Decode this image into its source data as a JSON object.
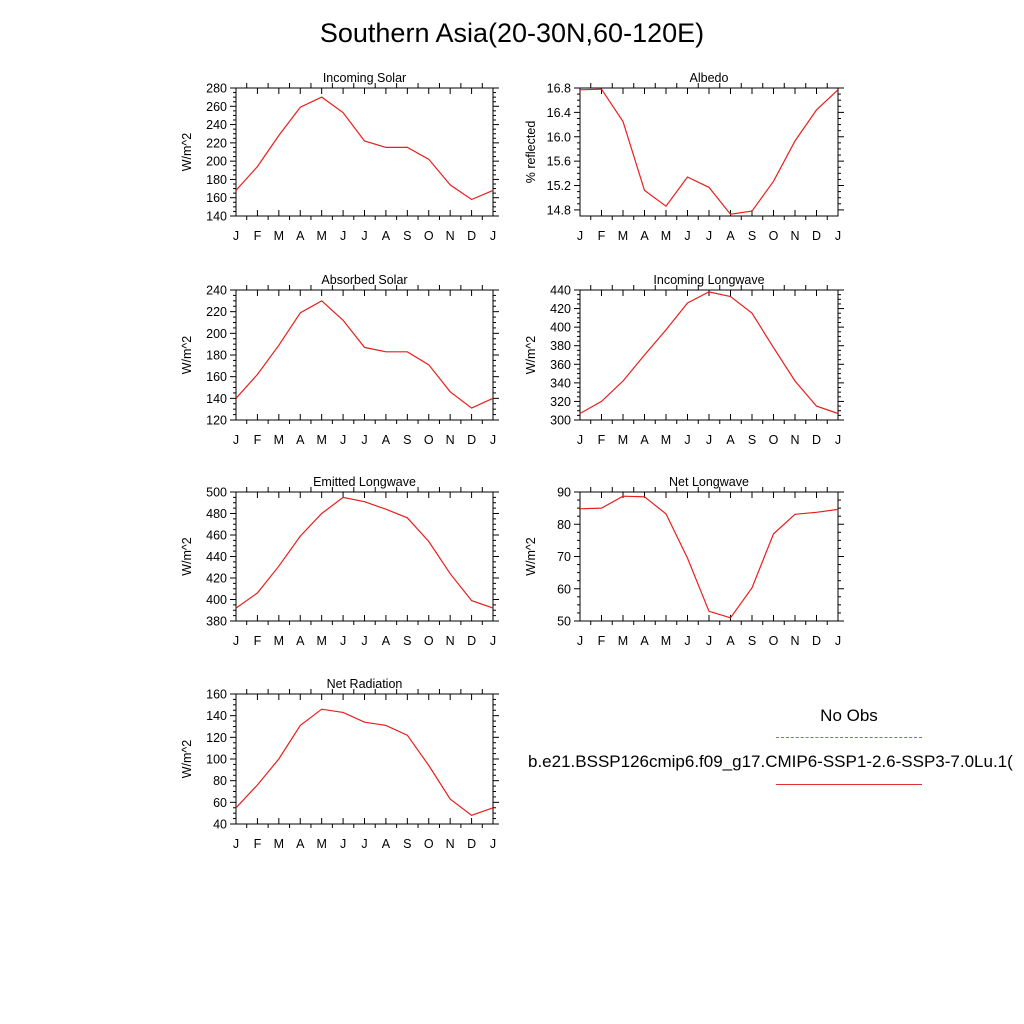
{
  "title": "Southern Asia(20-30N,60-120E)",
  "colors": {
    "model_line": "#e81e1e",
    "obs_line": "#6f6fd6",
    "axis": "#000000"
  },
  "legend": {
    "obs_label": "No Obs",
    "model_label": "b.e21.BSSP126cmip6.f09_g17.CMIP6-SSP1-2.6-SSP3-7.0Lu.1("
  },
  "chart_data": [
    {
      "type": "line",
      "title": "Incoming Solar",
      "ylabel": "W/m^2",
      "categories": [
        "J",
        "F",
        "M",
        "A",
        "M",
        "J",
        "J",
        "A",
        "S",
        "O",
        "N",
        "D",
        "J"
      ],
      "ylim": [
        140,
        280
      ],
      "yticks": [
        140,
        160,
        180,
        200,
        220,
        240,
        260,
        280
      ],
      "ytick_labels": [
        "140",
        "160",
        "180",
        "200",
        "220",
        "240",
        "260",
        "280"
      ],
      "values": [
        168,
        194,
        228,
        259,
        270,
        253,
        222,
        215,
        215,
        202,
        174,
        158,
        168
      ]
    },
    {
      "type": "line",
      "title": "Albedo",
      "ylabel": "% reflected",
      "categories": [
        "J",
        "F",
        "M",
        "A",
        "M",
        "J",
        "J",
        "A",
        "S",
        "O",
        "N",
        "D",
        "J"
      ],
      "ylim": [
        14.7,
        16.8
      ],
      "yticks": [
        14.8,
        15.2,
        15.6,
        16.0,
        16.4,
        16.8
      ],
      "ytick_labels": [
        "14.8",
        "15.2",
        "15.6",
        "16.0",
        "16.4",
        "16.8"
      ],
      "values": [
        16.77,
        16.78,
        16.25,
        15.12,
        14.86,
        15.34,
        15.17,
        14.73,
        14.78,
        15.27,
        15.93,
        16.44,
        16.77
      ]
    },
    {
      "type": "line",
      "title": "Absorbed Solar",
      "ylabel": "W/m^2",
      "categories": [
        "J",
        "F",
        "M",
        "A",
        "M",
        "J",
        "J",
        "A",
        "S",
        "O",
        "N",
        "D",
        "J"
      ],
      "ylim": [
        120,
        240
      ],
      "yticks": [
        120,
        140,
        160,
        180,
        200,
        220,
        240
      ],
      "ytick_labels": [
        "120",
        "140",
        "160",
        "180",
        "200",
        "220",
        "240"
      ],
      "values": [
        140,
        162,
        189,
        219,
        230,
        212,
        187,
        183,
        183,
        171,
        146,
        131,
        140
      ]
    },
    {
      "type": "line",
      "title": "Incoming Longwave",
      "ylabel": "W/m^2",
      "categories": [
        "J",
        "F",
        "M",
        "A",
        "M",
        "J",
        "J",
        "A",
        "S",
        "O",
        "N",
        "D",
        "J"
      ],
      "ylim": [
        300,
        440
      ],
      "yticks": [
        300,
        320,
        340,
        360,
        380,
        400,
        420,
        440
      ],
      "ytick_labels": [
        "300",
        "320",
        "340",
        "360",
        "380",
        "400",
        "420",
        "440"
      ],
      "values": [
        307,
        320,
        342,
        370,
        397,
        426,
        438,
        433,
        415,
        378,
        342,
        315,
        307
      ]
    },
    {
      "type": "line",
      "title": "Emitted Longwave",
      "ylabel": "W/m^2",
      "categories": [
        "J",
        "F",
        "M",
        "A",
        "M",
        "J",
        "J",
        "A",
        "S",
        "O",
        "N",
        "D",
        "J"
      ],
      "ylim": [
        380,
        500
      ],
      "yticks": [
        380,
        400,
        420,
        440,
        460,
        480,
        500
      ],
      "ytick_labels": [
        "380",
        "400",
        "420",
        "440",
        "460",
        "480",
        "500"
      ],
      "values": [
        392,
        406,
        431,
        459,
        480,
        495,
        491,
        484,
        476,
        454,
        424,
        399,
        392
      ]
    },
    {
      "type": "line",
      "title": "Net Longwave",
      "ylabel": "W/m^2",
      "categories": [
        "J",
        "F",
        "M",
        "A",
        "M",
        "J",
        "J",
        "A",
        "S",
        "O",
        "N",
        "D",
        "J"
      ],
      "ylim": [
        50,
        90
      ],
      "yticks": [
        50,
        60,
        70,
        80,
        90
      ],
      "ytick_labels": [
        "50",
        "60",
        "70",
        "80",
        "90"
      ],
      "values": [
        84.8,
        85.0,
        88.7,
        88.5,
        83.2,
        69.5,
        53.0,
        51.0,
        60.3,
        77.0,
        83.1,
        83.7,
        84.6
      ]
    },
    {
      "type": "line",
      "title": "Net Radiation",
      "ylabel": "W/m^2",
      "categories": [
        "J",
        "F",
        "M",
        "A",
        "M",
        "J",
        "J",
        "A",
        "S",
        "O",
        "N",
        "D",
        "J"
      ],
      "ylim": [
        40,
        160
      ],
      "yticks": [
        40,
        60,
        80,
        100,
        120,
        140,
        160
      ],
      "ytick_labels": [
        "40",
        "60",
        "80",
        "100",
        "120",
        "140",
        "160"
      ],
      "values": [
        55,
        76,
        100,
        131,
        146,
        143,
        134,
        131,
        122,
        94,
        63,
        48,
        55
      ]
    }
  ]
}
